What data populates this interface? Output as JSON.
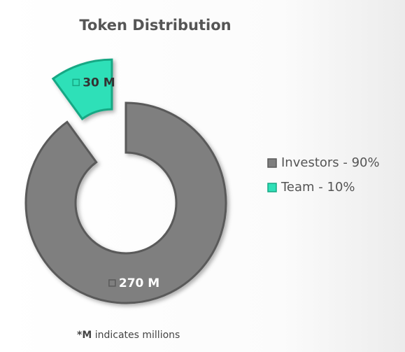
{
  "chart_data": {
    "type": "pie",
    "title": "Token Distribution",
    "categories": [
      "Investors - 90%",
      "Team - 10%"
    ],
    "values": [
      270,
      30
    ],
    "value_labels": [
      "270 M",
      "30 M"
    ],
    "colors": [
      "#7f7f7f",
      "#2fe0b8"
    ],
    "exploded": [
      false,
      true
    ],
    "donut": true,
    "legend": "right",
    "note_mark": "*M",
    "note": "indicates millions"
  }
}
